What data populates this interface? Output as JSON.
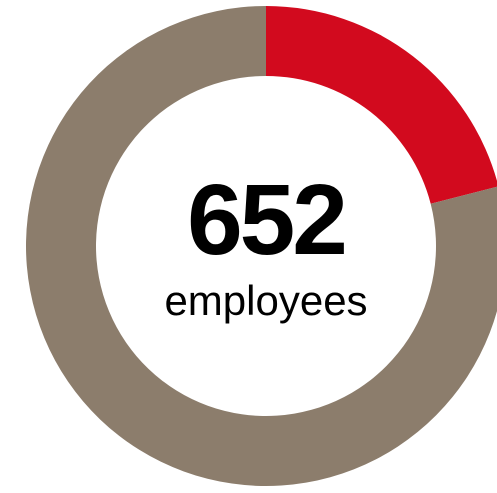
{
  "chart_data": {
    "type": "pie",
    "variant": "donut",
    "center_value": "652",
    "center_label": "employees",
    "slices": [
      {
        "value": 0.21,
        "color": "#d20a1e"
      },
      {
        "value": 0.79,
        "color": "#8c7d6c"
      }
    ]
  }
}
